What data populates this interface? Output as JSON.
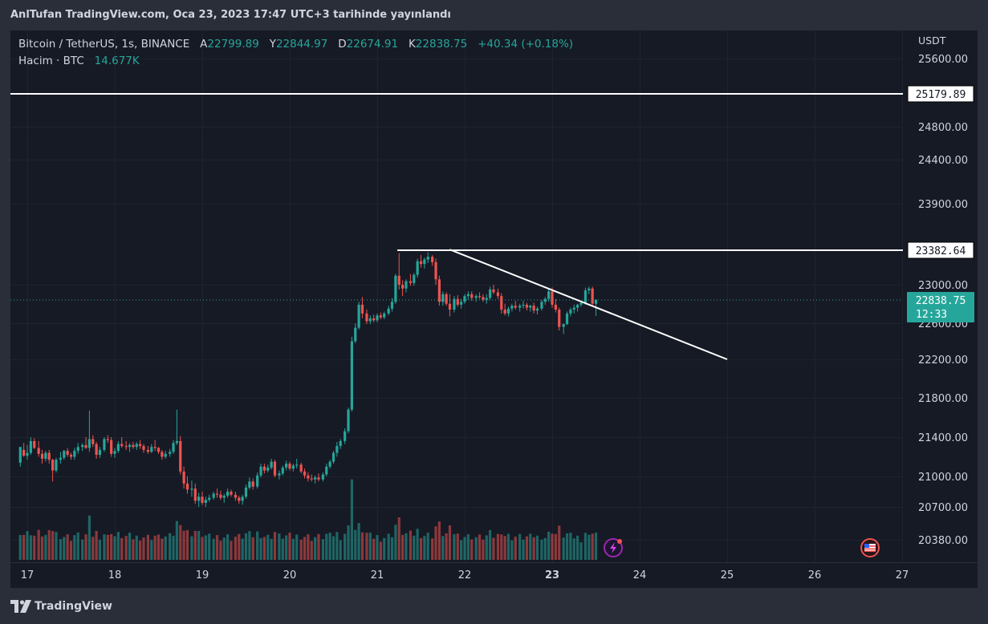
{
  "header": {
    "published": "AnlTufan TradingView.com, Oca 23, 2023 17:47 UTC+3 tarihinde yayınlandı"
  },
  "legend": {
    "symbol": "Bitcoin / TetherUS, 1s, BINANCE",
    "open_label": "A",
    "open": "22799.89",
    "high_label": "Y",
    "high": "22844.97",
    "low_label": "D",
    "low": "22674.91",
    "close_label": "K",
    "close": "22838.75",
    "change": "+40.34 (+0.18%)",
    "volume_label": "Hacim · BTC",
    "volume": "14.677K"
  },
  "footer": {
    "brand": "TradingView"
  },
  "colors": {
    "background": "#161a25",
    "up": "#26a69a",
    "down": "#ef5350",
    "line": "#ffffff",
    "grid": "#1f232e",
    "text": "#d1d4dc"
  },
  "chart_data": {
    "type": "candlestick",
    "currency": "USDT",
    "y_ticks": [
      25600,
      24800,
      24400,
      23900,
      23000,
      22600,
      22200,
      21800,
      21400,
      21000,
      20700,
      20380
    ],
    "x_ticks": [
      {
        "label": "17",
        "day": 17
      },
      {
        "label": "18",
        "day": 18
      },
      {
        "label": "19",
        "day": 19
      },
      {
        "label": "20",
        "day": 20
      },
      {
        "label": "21",
        "day": 21
      },
      {
        "label": "22",
        "day": 22
      },
      {
        "label": "23",
        "day": 23,
        "bold": true
      },
      {
        "label": "24",
        "day": 24
      },
      {
        "label": "25",
        "day": 25
      },
      {
        "label": "26",
        "day": 26
      },
      {
        "label": "27",
        "day": 27
      }
    ],
    "horizontal_lines": [
      {
        "price": 25179.89,
        "label": "25179.89",
        "from_day": 16.8
      },
      {
        "price": 23382.64,
        "label": "23382.64",
        "from_day": 21.23
      }
    ],
    "trend_line": {
      "from": {
        "day": 21.83,
        "price": 23390
      },
      "to": {
        "day": 25.0,
        "price": 22200
      }
    },
    "current_price": {
      "price": 22838.75,
      "label": "22838.75",
      "countdown": "12:33"
    },
    "candles": [
      [
        16.92,
        21140,
        21300,
        21100,
        21300
      ],
      [
        16.96,
        21270,
        21340,
        21200,
        21210
      ],
      [
        17.0,
        21210,
        21320,
        21170,
        21240
      ],
      [
        17.04,
        21240,
        21400,
        21220,
        21360
      ],
      [
        17.08,
        21360,
        21390,
        21280,
        21290
      ],
      [
        17.13,
        21290,
        21360,
        21200,
        21230
      ],
      [
        17.17,
        21230,
        21270,
        21130,
        21180
      ],
      [
        17.21,
        21180,
        21260,
        21150,
        21240
      ],
      [
        17.25,
        21240,
        21270,
        21130,
        21170
      ],
      [
        17.29,
        21170,
        21180,
        20950,
        21060
      ],
      [
        17.33,
        21060,
        21190,
        21040,
        21170
      ],
      [
        17.38,
        21170,
        21250,
        21130,
        21190
      ],
      [
        17.42,
        21190,
        21270,
        21170,
        21260
      ],
      [
        17.46,
        21260,
        21290,
        21200,
        21220
      ],
      [
        17.5,
        21220,
        21240,
        21170,
        21200
      ],
      [
        17.54,
        21200,
        21290,
        21170,
        21260
      ],
      [
        17.58,
        21260,
        21340,
        21230,
        21300
      ],
      [
        17.63,
        21300,
        21340,
        21260,
        21320
      ],
      [
        17.67,
        21320,
        21400,
        21280,
        21290
      ],
      [
        17.71,
        21290,
        21670,
        21250,
        21380
      ],
      [
        17.75,
        21380,
        21420,
        21300,
        21330
      ],
      [
        17.79,
        21330,
        21350,
        21180,
        21220
      ],
      [
        17.83,
        21220,
        21300,
        21190,
        21270
      ],
      [
        17.88,
        21270,
        21400,
        21250,
        21380
      ],
      [
        17.92,
        21380,
        21420,
        21340,
        21370
      ],
      [
        17.96,
        21370,
        21400,
        21200,
        21230
      ],
      [
        18.0,
        21230,
        21290,
        21190,
        21260
      ],
      [
        18.04,
        21260,
        21360,
        21240,
        21330
      ],
      [
        18.08,
        21330,
        21400,
        21290,
        21310
      ],
      [
        18.13,
        21310,
        21360,
        21270,
        21300
      ],
      [
        18.17,
        21300,
        21340,
        21250,
        21320
      ],
      [
        18.21,
        21320,
        21350,
        21280,
        21300
      ],
      [
        18.25,
        21300,
        21350,
        21270,
        21330
      ],
      [
        18.29,
        21330,
        21370,
        21280,
        21310
      ],
      [
        18.33,
        21310,
        21330,
        21240,
        21270
      ],
      [
        18.38,
        21270,
        21310,
        21230,
        21250
      ],
      [
        18.42,
        21250,
        21330,
        21240,
        21300
      ],
      [
        18.46,
        21300,
        21370,
        21260,
        21290
      ],
      [
        18.5,
        21290,
        21300,
        21230,
        21250
      ],
      [
        18.54,
        21250,
        21270,
        21170,
        21200
      ],
      [
        18.58,
        21200,
        21260,
        21180,
        21230
      ],
      [
        18.63,
        21230,
        21280,
        21200,
        21250
      ],
      [
        18.67,
        21250,
        21370,
        21230,
        21340
      ],
      [
        18.71,
        21340,
        21680,
        21320,
        21360
      ],
      [
        18.75,
        21360,
        21410,
        21020,
        21050
      ],
      [
        18.79,
        21050,
        21100,
        20880,
        20930
      ],
      [
        18.83,
        20930,
        21000,
        20830,
        20870
      ],
      [
        18.88,
        20870,
        20960,
        20800,
        20880
      ],
      [
        18.92,
        20880,
        20930,
        20730,
        20760
      ],
      [
        18.96,
        20760,
        20840,
        20700,
        20800
      ],
      [
        19.0,
        20800,
        20850,
        20720,
        20740
      ],
      [
        19.04,
        20740,
        20800,
        20700,
        20770
      ],
      [
        19.08,
        20770,
        20820,
        20750,
        20790
      ],
      [
        19.13,
        20790,
        20850,
        20770,
        20830
      ],
      [
        19.17,
        20830,
        20880,
        20790,
        20820
      ],
      [
        19.21,
        20820,
        20860,
        20770,
        20790
      ],
      [
        19.25,
        20790,
        20830,
        20740,
        20810
      ],
      [
        19.29,
        20810,
        20880,
        20790,
        20850
      ],
      [
        19.33,
        20850,
        20870,
        20800,
        20820
      ],
      [
        19.38,
        20820,
        20850,
        20760,
        20790
      ],
      [
        19.42,
        20790,
        20810,
        20730,
        20760
      ],
      [
        19.46,
        20760,
        20820,
        20720,
        20800
      ],
      [
        19.5,
        20800,
        20920,
        20780,
        20890
      ],
      [
        19.54,
        20890,
        20990,
        20870,
        20950
      ],
      [
        19.58,
        20950,
        20980,
        20870,
        20900
      ],
      [
        19.63,
        20900,
        21040,
        20880,
        21010
      ],
      [
        19.67,
        21010,
        21130,
        20990,
        21100
      ],
      [
        19.71,
        21100,
        21130,
        21030,
        21060
      ],
      [
        19.75,
        21060,
        21120,
        21040,
        21090
      ],
      [
        19.79,
        21090,
        21180,
        21070,
        21150
      ],
      [
        19.83,
        21150,
        21170,
        20990,
        21010
      ],
      [
        19.88,
        21010,
        21060,
        20970,
        21030
      ],
      [
        19.92,
        21030,
        21110,
        21010,
        21090
      ],
      [
        19.96,
        21090,
        21160,
        21060,
        21130
      ],
      [
        20.0,
        21130,
        21150,
        21060,
        21080
      ],
      [
        20.04,
        21080,
        21130,
        21050,
        21110
      ],
      [
        20.08,
        21110,
        21180,
        21080,
        21120
      ],
      [
        20.13,
        21120,
        21140,
        21030,
        21050
      ],
      [
        20.17,
        21050,
        21080,
        20980,
        21010
      ],
      [
        20.21,
        21010,
        21040,
        20950,
        20980
      ],
      [
        20.25,
        20980,
        21020,
        20950,
        20970
      ],
      [
        20.29,
        20970,
        21010,
        20930,
        20990
      ],
      [
        20.33,
        20990,
        21030,
        20950,
        20970
      ],
      [
        20.38,
        20970,
        21040,
        20950,
        21020
      ],
      [
        20.42,
        21020,
        21130,
        21000,
        21100
      ],
      [
        20.46,
        21100,
        21170,
        21080,
        21150
      ],
      [
        20.5,
        21150,
        21260,
        21130,
        21240
      ],
      [
        20.54,
        21240,
        21350,
        21200,
        21310
      ],
      [
        20.58,
        21310,
        21380,
        21280,
        21360
      ],
      [
        20.63,
        21360,
        21490,
        21330,
        21460
      ],
      [
        20.67,
        21460,
        21700,
        21440,
        21680
      ],
      [
        20.71,
        21680,
        22450,
        21660,
        22400
      ],
      [
        20.75,
        22400,
        22600,
        22380,
        22550
      ],
      [
        20.79,
        22550,
        22820,
        22530,
        22790
      ],
      [
        20.83,
        22790,
        22870,
        22650,
        22700
      ],
      [
        20.88,
        22700,
        22740,
        22590,
        22620
      ],
      [
        20.92,
        22620,
        22680,
        22590,
        22650
      ],
      [
        20.96,
        22650,
        22690,
        22610,
        22630
      ],
      [
        21.0,
        22630,
        22700,
        22610,
        22680
      ],
      [
        21.04,
        22680,
        22710,
        22640,
        22660
      ],
      [
        21.08,
        22660,
        22720,
        22640,
        22700
      ],
      [
        21.13,
        22700,
        22780,
        22680,
        22750
      ],
      [
        21.17,
        22750,
        22860,
        22720,
        22820
      ],
      [
        21.21,
        22820,
        23120,
        22800,
        23100
      ],
      [
        21.25,
        23100,
        23350,
        22950,
        23000
      ],
      [
        21.29,
        23000,
        23050,
        22880,
        22960
      ],
      [
        21.33,
        22960,
        23060,
        22920,
        23040
      ],
      [
        21.38,
        23040,
        23120,
        22990,
        23020
      ],
      [
        21.42,
        23020,
        23130,
        22990,
        23110
      ],
      [
        21.46,
        23110,
        23290,
        23080,
        23260
      ],
      [
        21.5,
        23260,
        23330,
        23190,
        23230
      ],
      [
        21.54,
        23230,
        23300,
        23180,
        23280
      ],
      [
        21.58,
        23280,
        23360,
        23240,
        23310
      ],
      [
        21.63,
        23310,
        23330,
        23210,
        23250
      ],
      [
        21.67,
        23250,
        23290,
        23000,
        23060
      ],
      [
        21.71,
        23060,
        23100,
        22780,
        22820
      ],
      [
        21.75,
        22820,
        22930,
        22780,
        22900
      ],
      [
        21.79,
        22900,
        22920,
        22780,
        22800
      ],
      [
        21.83,
        22800,
        22900,
        22670,
        22740
      ],
      [
        21.88,
        22740,
        22880,
        22710,
        22850
      ],
      [
        21.92,
        22850,
        22890,
        22770,
        22790
      ],
      [
        21.96,
        22790,
        22850,
        22750,
        22820
      ],
      [
        22.0,
        22820,
        22900,
        22800,
        22880
      ],
      [
        22.04,
        22880,
        22930,
        22840,
        22900
      ],
      [
        22.08,
        22900,
        22930,
        22830,
        22860
      ],
      [
        22.13,
        22860,
        22900,
        22820,
        22880
      ],
      [
        22.17,
        22880,
        22920,
        22850,
        22870
      ],
      [
        22.21,
        22870,
        22900,
        22820,
        22840
      ],
      [
        22.25,
        22840,
        22900,
        22800,
        22860
      ],
      [
        22.29,
        22860,
        22980,
        22840,
        22950
      ],
      [
        22.33,
        22950,
        23000,
        22900,
        22920
      ],
      [
        22.38,
        22920,
        22960,
        22850,
        22880
      ],
      [
        22.42,
        22880,
        22910,
        22700,
        22740
      ],
      [
        22.46,
        22740,
        22800,
        22680,
        22700
      ],
      [
        22.5,
        22700,
        22770,
        22670,
        22750
      ],
      [
        22.54,
        22750,
        22800,
        22720,
        22780
      ],
      [
        22.58,
        22780,
        22830,
        22740,
        22760
      ],
      [
        22.63,
        22760,
        22800,
        22720,
        22780
      ],
      [
        22.67,
        22780,
        22830,
        22750,
        22790
      ],
      [
        22.71,
        22790,
        22810,
        22730,
        22760
      ],
      [
        22.75,
        22760,
        22790,
        22720,
        22780
      ],
      [
        22.79,
        22780,
        22810,
        22700,
        22730
      ],
      [
        22.83,
        22730,
        22770,
        22690,
        22750
      ],
      [
        22.88,
        22750,
        22840,
        22730,
        22820
      ],
      [
        22.92,
        22820,
        22870,
        22790,
        22850
      ],
      [
        22.96,
        22850,
        22960,
        22820,
        22930
      ],
      [
        23.0,
        22930,
        22970,
        22760,
        22790
      ],
      [
        23.04,
        22790,
        22850,
        22710,
        22740
      ],
      [
        23.08,
        22740,
        22760,
        22520,
        22560
      ],
      [
        23.13,
        22560,
        22600,
        22480,
        22590
      ],
      [
        23.17,
        22590,
        22720,
        22580,
        22700
      ],
      [
        23.21,
        22700,
        22760,
        22670,
        22740
      ],
      [
        23.25,
        22740,
        22790,
        22700,
        22760
      ],
      [
        23.29,
        22760,
        22800,
        22720,
        22790
      ],
      [
        23.33,
        22790,
        22830,
        22770,
        22810
      ],
      [
        23.38,
        22810,
        22970,
        22790,
        22940
      ],
      [
        23.42,
        22940,
        22980,
        22900,
        22960
      ],
      [
        23.46,
        22960,
        22980,
        22770,
        22800
      ],
      [
        23.5,
        22800,
        22845,
        22675,
        22839
      ]
    ]
  }
}
